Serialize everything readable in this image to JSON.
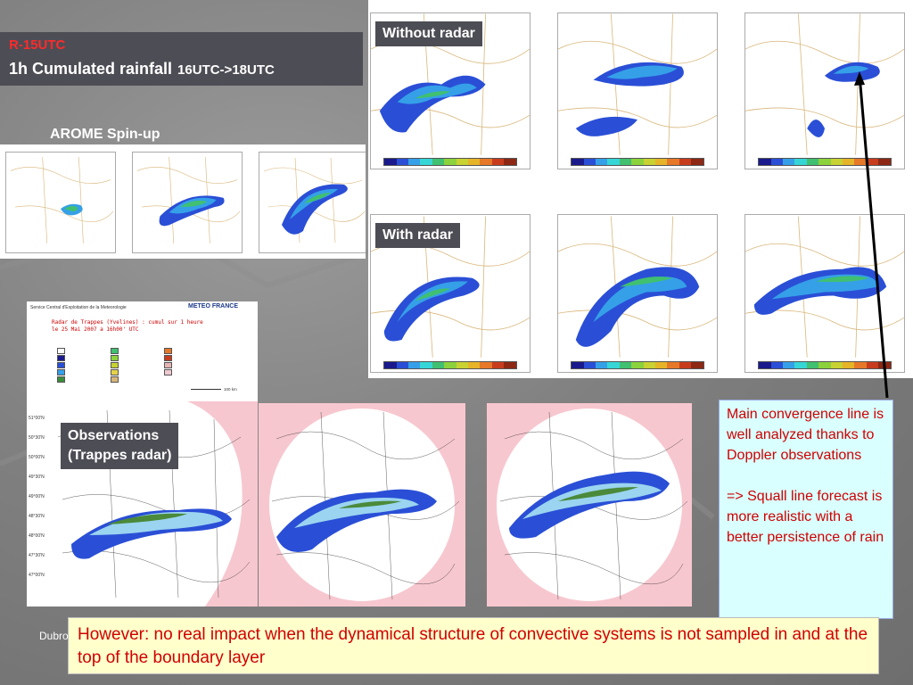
{
  "header": {
    "subtitle": "R-15UTC",
    "title": "1h Cumulated rainfall",
    "period": "16UTC->18UTC"
  },
  "labels": {
    "arome_spinup": "AROME Spin-up",
    "without_radar": "Without radar",
    "with_radar": "With radar",
    "observations_line1": "Observations",
    "observations_line2": "(Trappes radar)"
  },
  "legend": {
    "header": "Service Central d'Exploitation de la Meteorologie",
    "logo": "METEO FRANCE",
    "radar_title_line1": "Radar de Trappes (Yvelines) : cumul sur 1 heure",
    "radar_title_line2": "le 25 Mai 2007 a 16h00' UTC",
    "scale": "100 km"
  },
  "note": {
    "p1": "Main convergence line is well analyzed thanks to Doppler observations",
    "p2": "=> Squall line forecast is more realistic with a better persistence of rain"
  },
  "bottom_text": "However: no real impact when the dynamical structure of convective systems is not sampled in and at the top of the boundary layer",
  "footer": "Dubro",
  "colors": {
    "title_bg": "#4d4d55",
    "alert_red": "#d00000",
    "note_bg": "#d9ffff",
    "bottom_bg": "#ffffcc",
    "rain_scale": [
      "#1a1a8c",
      "#2a4fd6",
      "#35a0e8",
      "#36d6d6",
      "#40c070",
      "#8cd23c",
      "#c8d232",
      "#e6b428",
      "#e67828",
      "#c83c1e",
      "#8c2814"
    ]
  }
}
